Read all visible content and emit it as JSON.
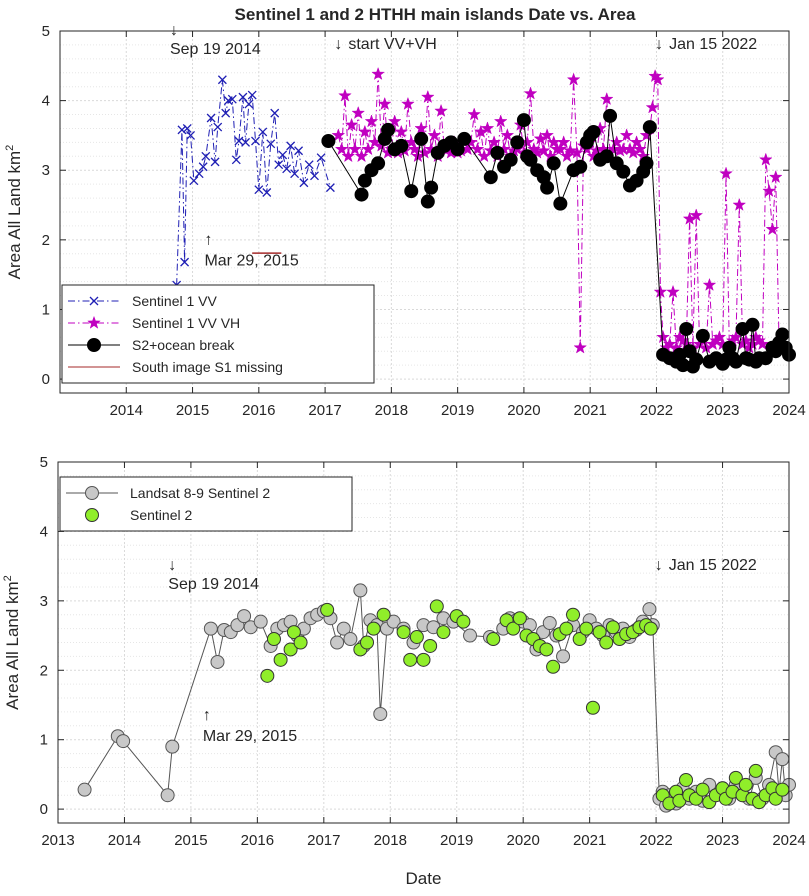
{
  "chart_data": [
    {
      "type": "line",
      "title": "Sentinel 1 and 2 HTHH main islands Date vs. Area",
      "xlabel": "",
      "ylabel": "Area All Land km",
      "ylabel_sup": "2",
      "xlim": [
        2013.0,
        2024.0
      ],
      "ylim": [
        -0.2,
        5
      ],
      "xticks": [
        2014,
        2015,
        2016,
        2017,
        2018,
        2019,
        2020,
        2021,
        2022,
        2023,
        2024
      ],
      "yticks": [
        0,
        1,
        2,
        3,
        4,
        5
      ],
      "grid": "on",
      "legend": [
        "Sentinel 1 VV",
        "Sentinel 1 VV VH",
        "S2+ocean break",
        "South image S1 missing"
      ],
      "legend_position": "bottom-left",
      "annotations": [
        {
          "text": "Sep 19 2014",
          "arrow": "↓",
          "x": 2014.72,
          "y": 5.0
        },
        {
          "text": "start VV+VH",
          "arrow": "↓",
          "x": 2017.2,
          "y": 4.8
        },
        {
          "text": "Jan 15 2022",
          "arrow": "↓",
          "x": 2022.04,
          "y": 4.8
        },
        {
          "text": "Mar 29, 2015",
          "arrow": "↑",
          "x": 2015.24,
          "y": 1.85
        }
      ],
      "series": [
        {
          "name": "Sentinel 1 VV",
          "color": "#1f1fb4",
          "style": "dashdot",
          "marker": "x",
          "x": [
            2014.76,
            2014.84,
            2014.88,
            2014.92,
            2014.97,
            2015.02,
            2015.1,
            2015.16,
            2015.2,
            2015.28,
            2015.34,
            2015.38,
            2015.45,
            2015.5,
            2015.54,
            2015.6,
            2015.66,
            2015.7,
            2015.76,
            2015.8,
            2015.85,
            2015.9,
            2015.95,
            2016.0,
            2016.06,
            2016.12,
            2016.18,
            2016.24,
            2016.3,
            2016.36,
            2016.42,
            2016.48,
            2016.54,
            2016.6,
            2016.68,
            2016.76,
            2016.84,
            2016.94,
            2017.08
          ],
          "y": [
            1.35,
            3.58,
            1.68,
            3.6,
            3.5,
            2.85,
            2.95,
            3.05,
            3.2,
            3.75,
            3.12,
            3.62,
            4.3,
            3.82,
            4.0,
            4.02,
            3.15,
            3.42,
            4.05,
            3.4,
            3.95,
            4.08,
            3.42,
            2.72,
            3.55,
            2.68,
            3.38,
            3.82,
            3.08,
            3.22,
            3.02,
            3.35,
            2.95,
            3.28,
            2.82,
            3.08,
            2.92,
            3.18,
            2.75
          ]
        },
        {
          "name": "Sentinel 1 VV VH",
          "color": "#c000c0",
          "style": "dashdot",
          "marker": "star",
          "x": [
            2017.2,
            2017.25,
            2017.3,
            2017.35,
            2017.4,
            2017.45,
            2017.5,
            2017.55,
            2017.6,
            2017.65,
            2017.7,
            2017.75,
            2017.8,
            2017.85,
            2017.9,
            2017.95,
            2018.0,
            2018.05,
            2018.1,
            2018.15,
            2018.2,
            2018.25,
            2018.3,
            2018.35,
            2018.4,
            2018.45,
            2018.5,
            2018.55,
            2018.6,
            2018.65,
            2018.7,
            2018.75,
            2018.8,
            2018.85,
            2018.9,
            2018.95,
            2019.0,
            2019.05,
            2019.1,
            2019.15,
            2019.2,
            2019.25,
            2019.3,
            2019.35,
            2019.4,
            2019.45,
            2019.5,
            2019.55,
            2019.6,
            2019.65,
            2019.7,
            2019.75,
            2019.8,
            2019.85,
            2019.9,
            2019.95,
            2020.0,
            2020.05,
            2020.1,
            2020.15,
            2020.2,
            2020.25,
            2020.3,
            2020.35,
            2020.4,
            2020.45,
            2020.5,
            2020.55,
            2020.6,
            2020.65,
            2020.7,
            2020.75,
            2020.8,
            2020.85,
            2020.9,
            2020.95,
            2021.0,
            2021.05,
            2021.1,
            2021.15,
            2021.2,
            2021.25,
            2021.3,
            2021.35,
            2021.4,
            2021.45,
            2021.5,
            2021.55,
            2021.6,
            2021.65,
            2021.7,
            2021.75,
            2021.8,
            2021.85,
            2021.9,
            2021.94,
            2021.98,
            2022.02,
            2022.06,
            2022.1,
            2022.15,
            2022.2,
            2022.25,
            2022.3,
            2022.35,
            2022.4,
            2022.45,
            2022.5,
            2022.55,
            2022.6,
            2022.65,
            2022.7,
            2022.75,
            2022.8,
            2022.85,
            2022.9,
            2022.95,
            2023.0,
            2023.05,
            2023.1,
            2023.15,
            2023.2,
            2023.25,
            2023.3,
            2023.35,
            2023.4,
            2023.45,
            2023.5,
            2023.55,
            2023.6,
            2023.65,
            2023.7,
            2023.75,
            2023.8,
            2023.85,
            2023.9
          ],
          "y": [
            3.5,
            3.3,
            4.07,
            3.2,
            3.65,
            3.3,
            3.82,
            3.2,
            3.55,
            3.3,
            3.7,
            3.4,
            4.38,
            3.35,
            3.95,
            3.25,
            3.3,
            3.7,
            3.25,
            3.55,
            3.28,
            3.95,
            3.4,
            3.3,
            3.2,
            3.6,
            3.25,
            4.05,
            3.3,
            3.5,
            3.2,
            3.85,
            3.3,
            3.3,
            3.25,
            3.4,
            3.25,
            3.28,
            3.4,
            3.3,
            3.4,
            3.8,
            3.3,
            3.55,
            3.2,
            3.6,
            3.28,
            3.4,
            3.2,
            3.7,
            3.3,
            3.5,
            3.2,
            3.28,
            3.3,
            3.65,
            3.25,
            3.4,
            4.1,
            3.3,
            3.25,
            3.45,
            3.28,
            3.5,
            3.2,
            3.4,
            3.3,
            3.3,
            3.4,
            3.2,
            3.28,
            4.3,
            3.25,
            0.45,
            3.35,
            3.3,
            3.4,
            3.2,
            3.28,
            3.6,
            3.3,
            4.02,
            3.25,
            3.3,
            3.4,
            3.28,
            3.3,
            3.5,
            3.3,
            3.25,
            3.4,
            3.3,
            3.2,
            3.5,
            3.6,
            3.9,
            4.35,
            4.3,
            1.25,
            0.6,
            0.45,
            0.5,
            1.25,
            0.45,
            0.6,
            0.55,
            0.5,
            2.3,
            0.45,
            2.35,
            0.5,
            0.55,
            0.45,
            1.35,
            0.5,
            0.55,
            0.6,
            0.5,
            2.95,
            0.45,
            0.55,
            0.6,
            2.5,
            0.5,
            0.55,
            0.45,
            0.5,
            0.6,
            0.55,
            0.5,
            3.15,
            2.7,
            2.15,
            2.9,
            0.5,
            0.4
          ]
        },
        {
          "name": "S2+ocean break",
          "color": "#000000",
          "style": "solid",
          "marker": "circle",
          "x": [
            2017.05,
            2017.55,
            2017.6,
            2017.7,
            2017.8,
            2017.9,
            2017.95,
            2018.05,
            2018.15,
            2018.3,
            2018.45,
            2018.55,
            2018.6,
            2018.7,
            2018.8,
            2018.9,
            2019.0,
            2019.1,
            2019.5,
            2019.6,
            2019.7,
            2019.8,
            2019.9,
            2020.0,
            2020.05,
            2020.1,
            2020.2,
            2020.3,
            2020.35,
            2020.45,
            2020.55,
            2020.75,
            2020.85,
            2020.95,
            2021.0,
            2021.05,
            2021.15,
            2021.25,
            2021.3,
            2021.4,
            2021.5,
            2021.6,
            2021.7,
            2021.8,
            2021.85,
            2021.9,
            2022.1,
            2022.2,
            2022.3,
            2022.35,
            2022.4,
            2022.45,
            2022.5,
            2022.55,
            2022.6,
            2022.7,
            2022.8,
            2022.9,
            2023.0,
            2023.05,
            2023.1,
            2023.15,
            2023.2,
            2023.3,
            2023.35,
            2023.4,
            2023.45,
            2023.5,
            2023.55,
            2023.65,
            2023.75,
            2023.8,
            2023.85,
            2023.9,
            2023.95,
            2024.0
          ],
          "y": [
            3.42,
            2.65,
            2.85,
            3.0,
            3.1,
            3.45,
            3.58,
            3.3,
            3.35,
            2.7,
            3.45,
            2.55,
            2.75,
            3.25,
            3.35,
            3.4,
            3.3,
            3.45,
            2.9,
            3.25,
            3.05,
            3.15,
            3.4,
            3.72,
            3.2,
            3.15,
            3.0,
            2.9,
            2.75,
            3.1,
            2.52,
            3.0,
            3.05,
            3.4,
            3.5,
            3.55,
            3.15,
            3.2,
            3.78,
            3.1,
            2.98,
            2.78,
            2.85,
            2.98,
            3.1,
            3.62,
            0.35,
            0.3,
            0.25,
            0.35,
            0.2,
            0.72,
            0.4,
            0.18,
            0.28,
            0.62,
            0.25,
            0.3,
            0.22,
            0.28,
            0.45,
            0.3,
            0.25,
            0.72,
            0.3,
            0.28,
            0.78,
            0.25,
            0.3,
            0.3,
            0.45,
            0.4,
            0.52,
            0.64,
            0.45,
            0.35
          ]
        },
        {
          "name": "South image S1 missing",
          "color": "#a52a2a",
          "style": "solid",
          "marker": "none",
          "x": [
            2015.9,
            2016.34
          ],
          "y": [
            1.81,
            1.81
          ]
        }
      ]
    },
    {
      "type": "line",
      "title": "",
      "xlabel": "Date",
      "ylabel": "Area All Land km",
      "ylabel_sup": "2",
      "xlim": [
        2013.0,
        2024.0
      ],
      "ylim": [
        -0.2,
        5
      ],
      "xticks": [
        2013,
        2014,
        2015,
        2016,
        2017,
        2018,
        2019,
        2020,
        2021,
        2022,
        2023,
        2024
      ],
      "yticks": [
        0,
        1,
        2,
        3,
        4,
        5
      ],
      "grid": "on",
      "legend": [
        "Landsat 8-9 Sentinel 2",
        "Sentinel 2"
      ],
      "legend_position": "top-left",
      "annotations": [
        {
          "text": "Sep 19 2014",
          "arrow": "↓",
          "x": 2014.72,
          "y": 3.5
        },
        {
          "text": "Jan 15 2022",
          "arrow": "↓",
          "x": 2022.04,
          "y": 3.5
        },
        {
          "text": "Mar 29, 2015",
          "arrow": "↑",
          "x": 2015.24,
          "y": 1.2
        }
      ],
      "series": [
        {
          "name": "Landsat 8-9 Sentinel 2",
          "color": "#555555",
          "style": "solid",
          "marker": "circle",
          "marker_fill": "#c8c8c8",
          "x": [
            2013.4,
            2013.9,
            2013.98,
            2014.65,
            2014.72,
            2015.3,
            2015.4,
            2015.5,
            2015.6,
            2015.7,
            2015.8,
            2015.9,
            2016.05,
            2016.2,
            2016.3,
            2016.4,
            2016.5,
            2016.6,
            2016.7,
            2016.8,
            2016.9,
            2017.0,
            2017.1,
            2017.2,
            2017.3,
            2017.4,
            2017.55,
            2017.6,
            2017.7,
            2017.8,
            2017.85,
            2017.95,
            2018.05,
            2018.2,
            2018.35,
            2018.5,
            2018.65,
            2018.8,
            2018.95,
            2019.2,
            2019.5,
            2019.7,
            2019.8,
            2019.9,
            2020.0,
            2020.1,
            2020.2,
            2020.3,
            2020.4,
            2020.5,
            2020.6,
            2020.75,
            2020.9,
            2021.0,
            2021.1,
            2021.2,
            2021.3,
            2021.4,
            2021.5,
            2021.6,
            2021.7,
            2021.8,
            2021.9,
            2021.95,
            2022.05,
            2022.1,
            2022.15,
            2022.2,
            2022.3,
            2022.4,
            2022.5,
            2022.6,
            2022.7,
            2022.8,
            2022.9,
            2023.0,
            2023.1,
            2023.2,
            2023.3,
            2023.4,
            2023.5,
            2023.6,
            2023.7,
            2023.8,
            2023.85,
            2023.9,
            2023.95,
            2024.0
          ],
          "y": [
            0.28,
            1.05,
            0.98,
            0.2,
            0.9,
            2.6,
            2.12,
            2.58,
            2.55,
            2.65,
            2.78,
            2.62,
            2.7,
            2.35,
            2.6,
            2.65,
            2.7,
            2.5,
            2.6,
            2.75,
            2.8,
            2.85,
            2.75,
            2.4,
            2.6,
            2.45,
            3.15,
            2.35,
            2.72,
            2.65,
            1.37,
            2.6,
            2.7,
            2.6,
            2.4,
            2.65,
            2.62,
            2.75,
            2.7,
            2.5,
            2.48,
            2.6,
            2.75,
            2.72,
            2.7,
            2.65,
            2.3,
            2.55,
            2.68,
            2.5,
            2.2,
            2.65,
            2.55,
            2.72,
            2.6,
            2.5,
            2.65,
            2.55,
            2.6,
            2.48,
            2.58,
            2.7,
            2.88,
            2.65,
            0.15,
            0.25,
            0.05,
            0.2,
            0.08,
            0.3,
            0.15,
            0.25,
            0.12,
            0.35,
            0.2,
            0.3,
            0.15,
            0.35,
            0.2,
            0.15,
            0.45,
            0.15,
            0.35,
            0.82,
            0.25,
            0.72,
            0.2,
            0.35
          ]
        },
        {
          "name": "Sentinel 2",
          "color": "#333333",
          "style": "none",
          "marker": "circle",
          "marker_fill": "#90ee2a",
          "x": [
            2016.15,
            2016.25,
            2016.35,
            2016.5,
            2016.55,
            2016.65,
            2017.05,
            2017.55,
            2017.65,
            2017.75,
            2017.9,
            2018.2,
            2018.3,
            2018.4,
            2018.5,
            2018.6,
            2018.7,
            2018.8,
            2019.0,
            2019.1,
            2019.55,
            2019.75,
            2019.85,
            2019.95,
            2020.05,
            2020.15,
            2020.25,
            2020.35,
            2020.45,
            2020.55,
            2020.65,
            2020.75,
            2020.85,
            2020.95,
            2021.05,
            2021.15,
            2021.25,
            2021.35,
            2021.45,
            2021.55,
            2021.65,
            2021.75,
            2021.85,
            2021.92,
            2022.1,
            2022.2,
            2022.3,
            2022.35,
            2022.45,
            2022.5,
            2022.6,
            2022.7,
            2022.8,
            2022.9,
            2023.0,
            2023.05,
            2023.15,
            2023.2,
            2023.3,
            2023.35,
            2023.45,
            2023.5,
            2023.55,
            2023.65,
            2023.75,
            2023.8,
            2023.9
          ],
          "y": [
            1.92,
            2.45,
            2.15,
            2.3,
            2.55,
            2.4,
            2.87,
            2.3,
            2.4,
            2.6,
            2.8,
            2.55,
            2.15,
            2.48,
            2.15,
            2.35,
            2.92,
            2.55,
            2.78,
            2.7,
            2.45,
            2.72,
            2.6,
            2.75,
            2.5,
            2.45,
            2.35,
            2.3,
            2.05,
            2.52,
            2.6,
            2.8,
            2.45,
            2.6,
            1.46,
            2.55,
            2.4,
            2.62,
            2.45,
            2.52,
            2.55,
            2.62,
            2.65,
            2.6,
            0.2,
            0.08,
            0.25,
            0.12,
            0.42,
            0.2,
            0.15,
            0.28,
            0.1,
            0.2,
            0.3,
            0.15,
            0.25,
            0.45,
            0.2,
            0.35,
            0.15,
            0.55,
            0.1,
            0.2,
            0.3,
            0.15,
            0.28
          ]
        }
      ]
    }
  ]
}
